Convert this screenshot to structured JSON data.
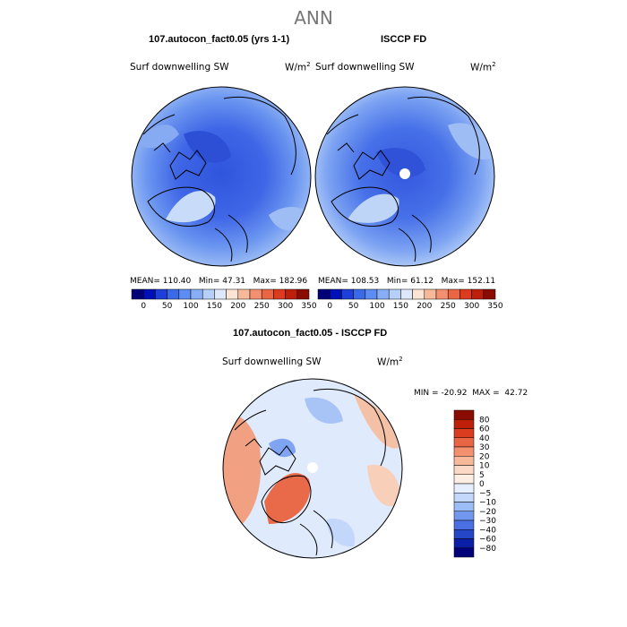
{
  "suptitle": "ANN",
  "panels": [
    {
      "title": "107.autocon_fact0.05 (yrs 1-1)",
      "variable": "Surf downwelling SW",
      "units": "W/m",
      "units_exp": "2",
      "stats": {
        "mean_label": "MEAN=",
        "mean": "110.40",
        "min_label": "Min=",
        "min": "47.31",
        "max_label": "Max=",
        "max": "182.96"
      }
    },
    {
      "title": "ISCCP FD",
      "variable": "Surf downwelling SW",
      "units": "W/m",
      "units_exp": "2",
      "stats": {
        "mean_label": "MEAN=",
        "mean": "108.53",
        "min_label": "Min=",
        "min": "61.12",
        "max_label": "Max=",
        "max": "152.11"
      }
    }
  ],
  "diff": {
    "title": "107.autocon_fact0.05 - ISCCP FD",
    "variable": "Surf downwelling SW",
    "units": "W/m",
    "units_exp": "2",
    "min_label": "MIN =",
    "min": "-20.92",
    "max_label": "MAX =",
    "max": "42.72"
  },
  "chart_data": [
    {
      "type": "heatmap",
      "projection": "north-polar-stereographic",
      "title": "107.autocon_fact0.05 (yrs 1-1)",
      "variable": "Surf downwelling SW",
      "units": "W/m2",
      "mean": 110.4,
      "min": 47.31,
      "max": 182.96,
      "colorbar_ticks": [
        "0",
        "50",
        "100",
        "150",
        "200",
        "250",
        "300",
        "350"
      ],
      "colorbar_levels": [
        0,
        25,
        50,
        75,
        100,
        125,
        150,
        175,
        200,
        225,
        250,
        275,
        300,
        325,
        350
      ],
      "colorbar_colors": [
        "#00007a",
        "#0010b8",
        "#1e3fd8",
        "#3a6ae8",
        "#5d8df2",
        "#88aef5",
        "#b5cff8",
        "#dde8fa",
        "#fde4d4",
        "#f7b99a",
        "#f29070",
        "#ea6544",
        "#db3b1e",
        "#bd1f0a",
        "#8a0b00"
      ]
    },
    {
      "type": "heatmap",
      "projection": "north-polar-stereographic",
      "title": "ISCCP FD",
      "variable": "Surf downwelling SW",
      "units": "W/m2",
      "mean": 108.53,
      "min": 61.12,
      "max": 152.11,
      "colorbar_ticks": [
        "0",
        "50",
        "100",
        "150",
        "200",
        "250",
        "300",
        "350"
      ],
      "colorbar_levels": [
        0,
        25,
        50,
        75,
        100,
        125,
        150,
        175,
        200,
        225,
        250,
        275,
        300,
        325,
        350
      ],
      "colorbar_colors": [
        "#00007a",
        "#0010b8",
        "#1e3fd8",
        "#3a6ae8",
        "#5d8df2",
        "#88aef5",
        "#b5cff8",
        "#dde8fa",
        "#fde4d4",
        "#f7b99a",
        "#f29070",
        "#ea6544",
        "#db3b1e",
        "#bd1f0a",
        "#8a0b00"
      ]
    },
    {
      "type": "heatmap",
      "projection": "north-polar-stereographic",
      "title": "107.autocon_fact0.05 - ISCCP FD",
      "variable": "Surf downwelling SW",
      "units": "W/m2",
      "min": -20.92,
      "max": 42.72,
      "colorbar_ticks": [
        "80",
        "60",
        "40",
        "30",
        "20",
        "10",
        "5",
        "0",
        "−5",
        "−10",
        "−20",
        "−30",
        "−40",
        "−60",
        "−80"
      ],
      "colorbar_colors": [
        "#8a0b00",
        "#bd1f0a",
        "#db3b1e",
        "#ea6544",
        "#f29070",
        "#f7b99a",
        "#fcd9c6",
        "#fdeee4",
        "#e6efff",
        "#c4d8fb",
        "#9cbcf5",
        "#7197ee",
        "#4a6fe2",
        "#2646c8",
        "#0b1ea8",
        "#00007a"
      ]
    }
  ]
}
